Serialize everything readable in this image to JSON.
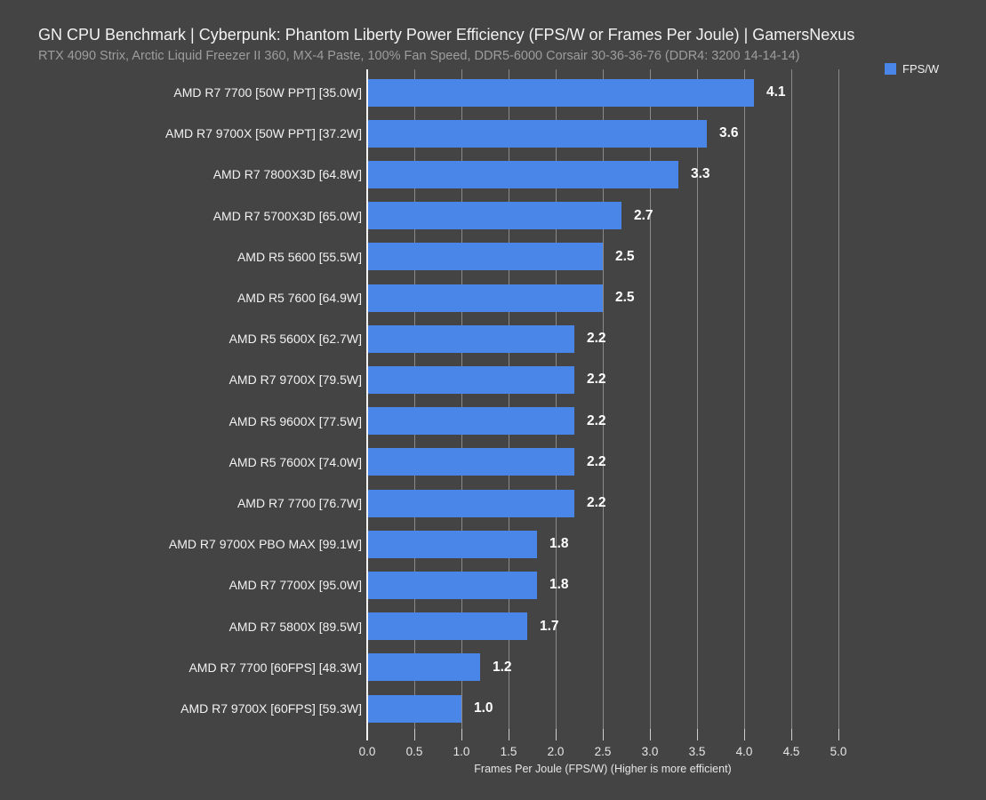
{
  "title": "GN CPU Benchmark | Cyberpunk: Phantom Liberty Power Efficiency (FPS/W or Frames Per Joule) | GamersNexus",
  "subtitle": "RTX 4090 Strix, Arctic Liquid Freezer II 360, MX-4 Paste, 100% Fan Speed, DDR5-6000 Corsair 30-36-36-76 (DDR4: 3200 14-14-14)",
  "legend": {
    "label": "FPS/W"
  },
  "colors": {
    "background": "#444444",
    "bar": "#4a86e8",
    "grid": "#8a8a8a",
    "axis_line": "#f2f2f2",
    "title_text": "#f2f2f2",
    "subtitle_text": "#9d9d9d",
    "value_text": "#ffffff",
    "tick_text": "#e6e6e6"
  },
  "chart_data": {
    "type": "bar",
    "orientation": "horizontal",
    "title": "GN CPU Benchmark | Cyberpunk: Phantom Liberty Power Efficiency (FPS/W or Frames Per Joule) | GamersNexus",
    "subtitle": "RTX 4090 Strix, Arctic Liquid Freezer II 360, MX-4 Paste, 100% Fan Speed, DDR5-6000 Corsair 30-36-36-76 (DDR4: 3200 14-14-14)",
    "categories": [
      "AMD R7 7700 [50W PPT] [35.0W]",
      "AMD R7 9700X [50W PPT] [37.2W]",
      "AMD R7 7800X3D [64.8W]",
      "AMD R7 5700X3D [65.0W]",
      "AMD R5 5600 [55.5W]",
      "AMD R5 7600 [64.9W]",
      "AMD R5 5600X [62.7W]",
      "AMD R7 9700X [79.5W]",
      "AMD R5 9600X [77.5W]",
      "AMD R5 7600X [74.0W]",
      "AMD R7 7700 [76.7W]",
      "AMD R7 9700X PBO MAX [99.1W]",
      "AMD R7 7700X [95.0W]",
      "AMD R7 5800X [89.5W]",
      "AMD R7 7700 [60FPS] [48.3W]",
      "AMD R7 9700X [60FPS] [59.3W]"
    ],
    "values": [
      4.1,
      3.6,
      3.3,
      2.7,
      2.5,
      2.5,
      2.2,
      2.2,
      2.2,
      2.2,
      2.2,
      1.8,
      1.8,
      1.7,
      1.2,
      1.0
    ],
    "value_labels": [
      "4.1",
      "3.6",
      "3.3",
      "2.7",
      "2.5",
      "2.5",
      "2.2",
      "2.2",
      "2.2",
      "2.2",
      "2.2",
      "1.8",
      "1.8",
      "1.7",
      "1.2",
      "1.0"
    ],
    "series_name": "FPS/W",
    "xlabel": "Frames Per Joule (FPS/W) (Higher is more efficient)",
    "ylabel": "",
    "xlim": [
      0,
      5.0
    ],
    "xticks": [
      0.0,
      0.5,
      1.0,
      1.5,
      2.0,
      2.5,
      3.0,
      3.5,
      4.0,
      4.5,
      5.0
    ],
    "xtick_labels": [
      "0.0",
      "0.5",
      "1.0",
      "1.5",
      "2.0",
      "2.5",
      "3.0",
      "3.5",
      "4.0",
      "4.5",
      "5.0"
    ],
    "grid": true,
    "legend_entries": [
      "FPS/W"
    ],
    "legend_position": "top-right"
  }
}
